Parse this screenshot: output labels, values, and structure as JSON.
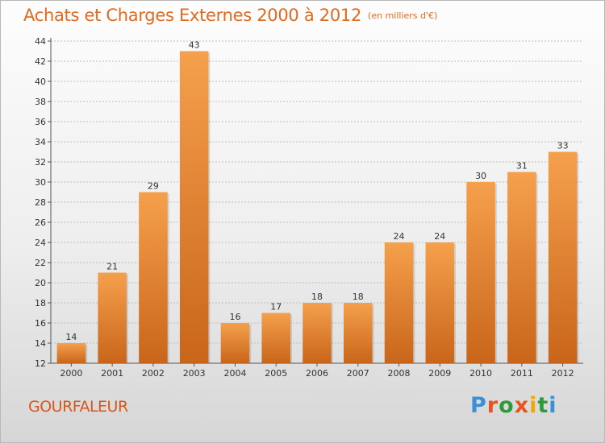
{
  "chart_data": {
    "type": "bar",
    "title": "Achats et Charges Externes 2000 à 2012",
    "subtitle": "(en milliers d'€)",
    "categories": [
      "2000",
      "2001",
      "2002",
      "2003",
      "2004",
      "2005",
      "2006",
      "2007",
      "2008",
      "2009",
      "2010",
      "2011",
      "2012"
    ],
    "values": [
      14,
      21,
      29,
      43,
      16,
      17,
      18,
      18,
      24,
      24,
      30,
      31,
      33
    ],
    "ylim": [
      12,
      44
    ],
    "yticks": [
      12,
      14,
      16,
      18,
      20,
      22,
      24,
      26,
      28,
      30,
      32,
      34,
      36,
      38,
      40,
      42,
      44
    ],
    "xlabel": "",
    "ylabel": "",
    "grid": "horizontal dashed",
    "data_labels": true,
    "colors": {
      "bar_light": "#f5a04c",
      "bar_dark": "#c9651a",
      "title": "#e06a1f"
    }
  },
  "commune": "GOURFALEUR",
  "logo": {
    "letters": [
      "P",
      "r",
      "o",
      "x",
      "i",
      "t",
      "i"
    ],
    "colors": [
      "#3a8fd6",
      "#e8551c",
      "#2e9a3c",
      "#e8551c",
      "#f2a800",
      "#2e9a3c",
      "#3a8fd6"
    ]
  }
}
